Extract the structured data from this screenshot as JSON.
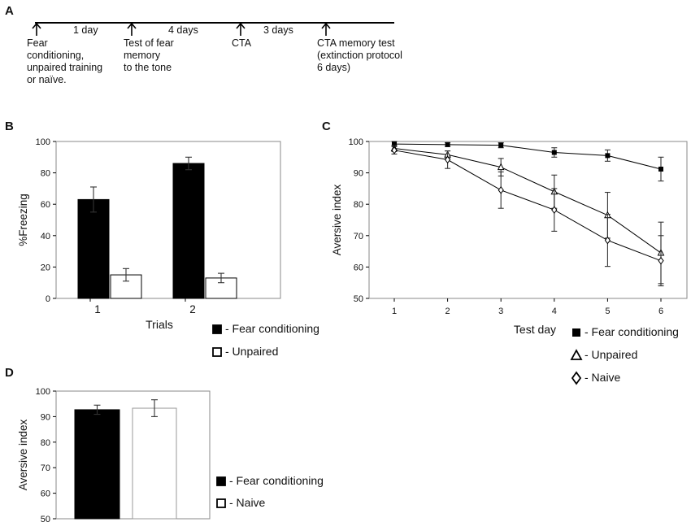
{
  "panels": {
    "A": {
      "letter": "A",
      "intervals": [
        "1 day",
        "4 days",
        "3 days"
      ],
      "events": [
        {
          "lines": [
            "Fear",
            "conditioning,",
            "unpaired training",
            "or naïve."
          ]
        },
        {
          "lines": [
            "Test of fear",
            "memory",
            "to the tone"
          ]
        },
        {
          "lines": [
            "CTA"
          ]
        },
        {
          "lines": [
            "CTA memory test",
            "(extinction protocol",
            "6 days)"
          ]
        }
      ]
    },
    "B": {
      "letter": "B"
    },
    "C": {
      "letter": "C"
    },
    "D": {
      "letter": "D"
    }
  },
  "colors": {
    "fear": "#000000",
    "control": "#ffffff",
    "stroke": "#000000",
    "frame": "#8a8a8a",
    "grid": "#d0d0d0"
  },
  "chart_data": [
    {
      "id": "B",
      "type": "bar",
      "title": "",
      "xlabel": "Trials",
      "ylabel": "%Freezing",
      "ylim": [
        0,
        100
      ],
      "yticks": [
        0,
        20,
        40,
        60,
        80,
        100
      ],
      "categories": [
        "1",
        "2"
      ],
      "series": [
        {
          "name": "- Fear conditioning",
          "fill": "fear",
          "values": [
            63,
            86
          ],
          "errors": [
            8,
            4
          ]
        },
        {
          "name": "- Unpaired",
          "fill": "control",
          "values": [
            15,
            13
          ],
          "errors": [
            4,
            3
          ]
        }
      ],
      "legend": "bottom-right"
    },
    {
      "id": "C",
      "type": "line",
      "title": "",
      "xlabel": "Test day",
      "ylabel": "Aversive index",
      "ylim": [
        50,
        100
      ],
      "yticks": [
        50,
        60,
        70,
        80,
        90,
        100
      ],
      "x": [
        1,
        2,
        3,
        4,
        5,
        6
      ],
      "series": [
        {
          "name": "- Fear conditioning",
          "marker": "square",
          "values": [
            99.2,
            99,
            98.8,
            96.5,
            95.5,
            91.2
          ],
          "errors": [
            0.8,
            0.6,
            0.8,
            1.5,
            1.8,
            3.8
          ]
        },
        {
          "name": "- Unpaired",
          "marker": "triangle",
          "values": [
            97.8,
            95.8,
            91.8,
            84,
            76.5,
            64.5
          ],
          "errors": [
            1,
            1.2,
            2.8,
            5.3,
            7.3,
            9.8
          ]
        },
        {
          "name": "- Naive",
          "marker": "diamond",
          "values": [
            97.2,
            94.2,
            84.5,
            78.2,
            68.5,
            62
          ],
          "errors": [
            1.2,
            2.8,
            5.8,
            6.8,
            8.3,
            8
          ]
        }
      ],
      "legend": "bottom-right"
    },
    {
      "id": "D",
      "type": "bar",
      "title": "",
      "xlabel": "",
      "ylabel": "Aversive index",
      "ylim": [
        50,
        100
      ],
      "yticks": [
        50,
        60,
        70,
        80,
        90,
        100
      ],
      "categories": [
        ""
      ],
      "series": [
        {
          "name": "- Fear conditioning",
          "fill": "fear",
          "values": [
            92.7
          ],
          "errors": [
            1.8
          ]
        },
        {
          "name": "- Naive",
          "fill": "control",
          "values": [
            93.3
          ],
          "errors": [
            3.3
          ]
        }
      ],
      "legend": "right"
    }
  ]
}
